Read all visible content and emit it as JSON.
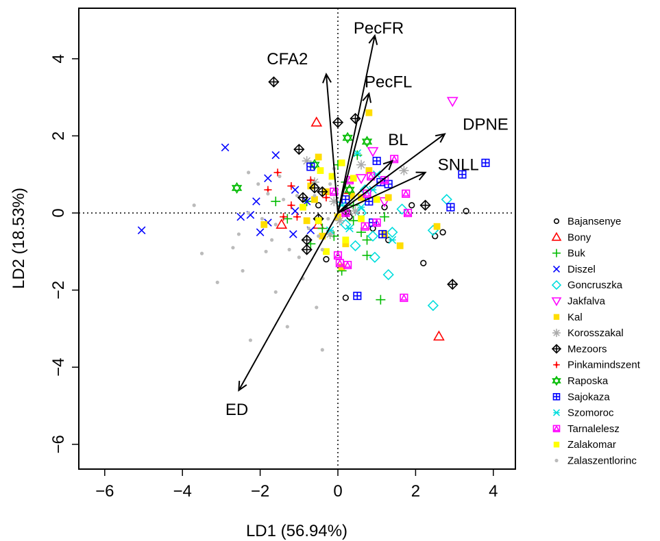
{
  "chart_data": {
    "type": "scatter",
    "xlabel": "LD1 (56.94%)",
    "ylabel": "LD2 (18.53%)",
    "xlim": [
      -6.8,
      5.0
    ],
    "ylim": [
      -6.6,
      5.2
    ],
    "xticks": [
      -6,
      -4,
      -2,
      0,
      2,
      4
    ],
    "yticks": [
      -6,
      -4,
      -2,
      0,
      2,
      4
    ],
    "xtick_labels": [
      "−6",
      "−4",
      "−2",
      "0",
      "2",
      "4"
    ],
    "ytick_labels": [
      "−6",
      "−4",
      "−2",
      "0",
      "2",
      "4"
    ],
    "reference_lines": "dotted x=0 and y=0",
    "legend_position": "right",
    "vectors": [
      {
        "label": "PecFR",
        "x": 0.95,
        "y": 4.6,
        "lx": 1.05,
        "ly": 4.8
      },
      {
        "label": "CFA2",
        "x": -0.3,
        "y": 3.6,
        "lx": -1.3,
        "ly": 4.0
      },
      {
        "label": "PecFL",
        "x": 0.8,
        "y": 3.1,
        "lx": 1.3,
        "ly": 3.4
      },
      {
        "label": "DPNE",
        "x": 2.75,
        "y": 2.05,
        "lx": 3.8,
        "ly": 2.3
      },
      {
        "label": "BL",
        "x": 1.4,
        "y": 1.35,
        "lx": 1.55,
        "ly": 1.9
      },
      {
        "label": "SNLL",
        "x": 2.25,
        "y": 1.05,
        "lx": 3.1,
        "ly": 1.25
      },
      {
        "label": "ED",
        "x": -2.55,
        "y": -4.6,
        "lx": -2.6,
        "ly": -5.1
      }
    ],
    "series": [
      {
        "name": "Bajansenye",
        "color": "#000000",
        "marker": "circle",
        "points": [
          [
            2.7,
            -0.5
          ],
          [
            3.3,
            0.05
          ],
          [
            2.2,
            -1.3
          ],
          [
            1.9,
            0.2
          ],
          [
            1.3,
            -0.7
          ],
          [
            0.2,
            -2.2
          ],
          [
            -0.3,
            -1.2
          ],
          [
            0.9,
            -0.4
          ],
          [
            1.2,
            0.15
          ],
          [
            2.5,
            -0.6
          ],
          [
            -0.5,
            0.2
          ],
          [
            0.3,
            -0.1
          ]
        ]
      },
      {
        "name": "Bony",
        "color": "#ff0000",
        "marker": "triangle",
        "points": [
          [
            -0.55,
            2.35
          ],
          [
            2.6,
            -3.2
          ],
          [
            -1.45,
            -0.3
          ],
          [
            0.3,
            0.6
          ],
          [
            -0.5,
            -0.3
          ]
        ]
      },
      {
        "name": "Buk",
        "color": "#00bb00",
        "marker": "plus",
        "points": [
          [
            0.5,
            1.5
          ],
          [
            0.0,
            1.25
          ],
          [
            1.1,
            -2.25
          ],
          [
            0.75,
            -1.1
          ],
          [
            -0.4,
            -0.4
          ],
          [
            0.1,
            -1.5
          ],
          [
            0.4,
            0.2
          ],
          [
            -0.1,
            -0.6
          ],
          [
            0.2,
            0.8
          ],
          [
            -0.8,
            0.3
          ],
          [
            0.75,
            -0.7
          ],
          [
            -1.6,
            0.3
          ],
          [
            -0.7,
            -0.8
          ],
          [
            0.4,
            -0.2
          ],
          [
            1.2,
            -0.1
          ],
          [
            0.6,
            -0.5
          ],
          [
            -1.3,
            -0.15
          ]
        ]
      },
      {
        "name": "Diszel",
        "color": "#0000ff",
        "marker": "x",
        "points": [
          [
            -5.05,
            -0.45
          ],
          [
            -2.9,
            1.7
          ],
          [
            -1.6,
            1.5
          ],
          [
            -1.8,
            0.9
          ],
          [
            -2.1,
            0.3
          ],
          [
            -2.5,
            -0.1
          ],
          [
            -2.0,
            -0.5
          ],
          [
            -1.8,
            -0.25
          ],
          [
            -1.1,
            0.6
          ],
          [
            -1.15,
            -0.55
          ],
          [
            -2.25,
            -0.05
          ],
          [
            -0.8,
            0.3
          ],
          [
            -1.1,
            0.05
          ],
          [
            -0.7,
            -0.45
          ]
        ]
      },
      {
        "name": "Goncruszka",
        "color": "#00dddd",
        "marker": "diamond",
        "points": [
          [
            2.45,
            -2.4
          ],
          [
            2.8,
            0.35
          ],
          [
            2.45,
            -0.45
          ],
          [
            1.3,
            -1.6
          ],
          [
            0.95,
            -1.15
          ],
          [
            1.65,
            0.1
          ],
          [
            0.6,
            0.0
          ],
          [
            0.2,
            -0.3
          ],
          [
            0.9,
            -0.6
          ],
          [
            0.45,
            -0.85
          ],
          [
            1.4,
            -0.5
          ],
          [
            0.7,
            0.6
          ]
        ]
      },
      {
        "name": "Jakfalva",
        "color": "#ff00ff",
        "marker": "triangle-down",
        "points": [
          [
            2.95,
            2.9
          ],
          [
            0.9,
            1.6
          ],
          [
            0.6,
            0.9
          ],
          [
            1.2,
            0.3
          ]
        ]
      },
      {
        "name": "Kal",
        "color": "#ffdd00",
        "marker": "square",
        "points": [
          [
            0.8,
            2.6
          ],
          [
            -0.5,
            1.45
          ],
          [
            -0.7,
            0.7
          ],
          [
            -0.3,
            0.55
          ],
          [
            0.0,
            -0.1
          ],
          [
            0.8,
            1.1
          ],
          [
            1.3,
            0.4
          ],
          [
            2.55,
            -0.35
          ],
          [
            1.6,
            -0.85
          ],
          [
            0.2,
            -0.8
          ],
          [
            -0.6,
            0.35
          ],
          [
            -1.9,
            -0.3
          ],
          [
            -0.4,
            -0.6
          ],
          [
            0.35,
            0.45
          ],
          [
            1.2,
            -0.55
          ],
          [
            -0.8,
            -0.2
          ],
          [
            0.1,
            -1.4
          ],
          [
            0.6,
            0.4
          ]
        ]
      },
      {
        "name": "Korosszakal",
        "color": "#aaaaaa",
        "marker": "star",
        "points": [
          [
            -0.8,
            1.35
          ],
          [
            0.6,
            1.25
          ],
          [
            1.7,
            1.1
          ],
          [
            0.05,
            -0.2
          ],
          [
            -0.2,
            -0.55
          ],
          [
            -0.6,
            0.8
          ],
          [
            0.45,
            0.05
          ],
          [
            -0.1,
            0.3
          ]
        ]
      },
      {
        "name": "Mezoors",
        "color": "#000000",
        "marker": "diamond-plus",
        "points": [
          [
            -1.65,
            3.4
          ],
          [
            0.45,
            2.45
          ],
          [
            0.0,
            2.35
          ],
          [
            -1.0,
            1.65
          ],
          [
            2.95,
            -1.85
          ],
          [
            2.25,
            0.2
          ],
          [
            -0.5,
            -0.15
          ],
          [
            -0.9,
            0.4
          ],
          [
            -0.6,
            0.65
          ],
          [
            -0.8,
            -0.95
          ],
          [
            -0.4,
            0.55
          ],
          [
            -0.8,
            -0.7
          ],
          [
            0.2,
            0.05
          ]
        ]
      },
      {
        "name": "Pinkamindszent",
        "color": "#ff0000",
        "marker": "cross-small",
        "points": [
          [
            -1.55,
            1.05
          ],
          [
            -1.2,
            0.7
          ],
          [
            -1.8,
            0.6
          ],
          [
            -1.2,
            0.2
          ],
          [
            -1.05,
            -0.1
          ],
          [
            -0.7,
            0.85
          ],
          [
            -0.3,
            0.4
          ],
          [
            -1.4,
            -0.1
          ]
        ]
      },
      {
        "name": "Raposka",
        "color": "#00bb00",
        "marker": "star-of-david",
        "points": [
          [
            -2.6,
            0.65
          ],
          [
            -0.6,
            1.25
          ],
          [
            0.25,
            1.95
          ],
          [
            0.75,
            1.85
          ],
          [
            0.3,
            0.6
          ]
        ]
      },
      {
        "name": "Sajokaza",
        "color": "#0000ff",
        "marker": "square-plus",
        "points": [
          [
            3.8,
            1.3
          ],
          [
            3.2,
            1.0
          ],
          [
            2.9,
            0.15
          ],
          [
            0.5,
            -2.15
          ],
          [
            1.0,
            1.35
          ],
          [
            1.3,
            0.75
          ],
          [
            1.1,
            0.8
          ],
          [
            0.8,
            0.3
          ],
          [
            0.2,
            0.35
          ],
          [
            -0.7,
            1.2
          ],
          [
            1.15,
            -0.55
          ],
          [
            0.9,
            -0.25
          ]
        ]
      },
      {
        "name": "Szomoroc",
        "color": "#00dddd",
        "marker": "x-tri",
        "points": [
          [
            0.5,
            1.55
          ],
          [
            1.0,
            1.0
          ],
          [
            0.1,
            0.2
          ],
          [
            -0.2,
            -0.45
          ],
          [
            0.6,
            0.15
          ],
          [
            0.3,
            -0.4
          ],
          [
            0.9,
            0.6
          ],
          [
            1.4,
            -0.7
          ]
        ]
      },
      {
        "name": "Tarnalelesz",
        "color": "#ff00ff",
        "marker": "square-triangle",
        "points": [
          [
            1.45,
            1.4
          ],
          [
            1.75,
            0.5
          ],
          [
            1.8,
            0.0
          ],
          [
            1.7,
            -2.2
          ],
          [
            0.85,
            0.95
          ],
          [
            0.75,
            0.5
          ],
          [
            -0.1,
            0.55
          ],
          [
            0.7,
            -0.35
          ],
          [
            1.0,
            -0.25
          ],
          [
            0.0,
            -1.1
          ],
          [
            0.25,
            -1.35
          ],
          [
            0.05,
            -1.3
          ],
          [
            0.3,
            0.85
          ],
          [
            1.2,
            0.85
          ],
          [
            0.2,
            0.0
          ]
        ]
      },
      {
        "name": "Zalakomar",
        "color": "#ffff00",
        "marker": "square",
        "points": [
          [
            -0.45,
            1.1
          ],
          [
            -0.15,
            0.95
          ],
          [
            0.4,
            0.9
          ],
          [
            0.2,
            -0.7
          ],
          [
            -0.5,
            -0.2
          ],
          [
            0.6,
            -0.15
          ],
          [
            1.0,
            0.35
          ],
          [
            -0.3,
            -1.0
          ],
          [
            0.1,
            1.3
          ],
          [
            -0.9,
            0.15
          ]
        ]
      },
      {
        "name": "Zalaszentlorinc",
        "color": "#bbbbbb",
        "marker": "dot",
        "points": [
          [
            -3.7,
            0.2
          ],
          [
            -3.5,
            -1.05
          ],
          [
            -3.1,
            -1.8
          ],
          [
            -2.45,
            -1.5
          ],
          [
            -2.25,
            -3.3
          ],
          [
            -1.85,
            -1.0
          ],
          [
            -1.6,
            -2.05
          ],
          [
            -1.0,
            -1.15
          ],
          [
            -1.3,
            -2.95
          ],
          [
            -0.55,
            -2.45
          ],
          [
            -0.4,
            -3.55
          ],
          [
            -1.7,
            -0.7
          ],
          [
            -2.3,
            0.0
          ],
          [
            -2.05,
            0.75
          ],
          [
            -2.3,
            1.05
          ],
          [
            -1.5,
            0.95
          ],
          [
            -0.75,
            -0.4
          ],
          [
            -0.4,
            -0.95
          ],
          [
            -1.25,
            -0.95
          ],
          [
            -0.9,
            -1.7
          ],
          [
            -2.55,
            -0.55
          ],
          [
            -1.95,
            -0.15
          ],
          [
            -1.4,
            0.35
          ],
          [
            -0.6,
            0.45
          ],
          [
            -0.1,
            1.15
          ],
          [
            -0.25,
            -0.15
          ],
          [
            -1.05,
            0.45
          ],
          [
            -1.6,
            -0.3
          ],
          [
            -2.7,
            -0.9
          ],
          [
            -0.5,
            -0.6
          ],
          [
            -1.8,
            0.5
          ],
          [
            -0.2,
            0.75
          ]
        ]
      }
    ]
  }
}
